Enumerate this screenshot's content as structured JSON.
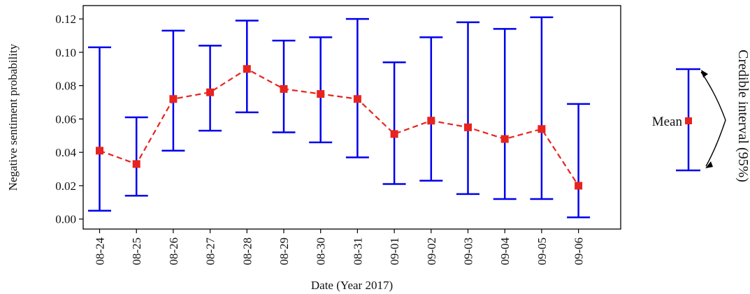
{
  "chart_data": {
    "type": "line",
    "title": "",
    "xlabel": "Date (Year 2017)",
    "ylabel": "Negative sentiment probability",
    "categories": [
      "08-24",
      "08-25",
      "08-26",
      "08-27",
      "08-28",
      "08-29",
      "08-30",
      "08-31",
      "09-01",
      "09-02",
      "09-03",
      "09-04",
      "09-05",
      "09-06"
    ],
    "series": [
      {
        "values": [
          0.041,
          0.033,
          0.072,
          0.076,
          0.09,
          0.078,
          0.075,
          0.072,
          0.051,
          0.059,
          0.055,
          0.048,
          0.054,
          0.02
        ],
        "lower": [
          0.005,
          0.014,
          0.041,
          0.053,
          0.064,
          0.052,
          0.046,
          0.037,
          0.021,
          0.023,
          0.015,
          0.012,
          0.012,
          0.001
        ],
        "upper": [
          0.103,
          0.061,
          0.113,
          0.104,
          0.119,
          0.107,
          0.109,
          0.12,
          0.094,
          0.109,
          0.118,
          0.114,
          0.121,
          0.069
        ]
      }
    ],
    "ylim": [
      -0.006,
      0.128
    ],
    "yticks": [
      "0.00",
      "0.02",
      "0.04",
      "0.06",
      "0.08",
      "0.10",
      "0.12"
    ],
    "colors": {
      "errorbar": "#0000ee",
      "line": "#e8231d",
      "marker": "#e8231d"
    },
    "grid": false
  },
  "legend_box": {
    "mean_label": "Mean",
    "interval_label": "Credible interval (95%)"
  }
}
